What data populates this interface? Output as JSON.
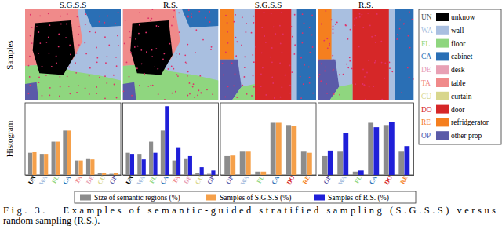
{
  "row_labels": [
    "Samples",
    "Histogram"
  ],
  "classes": [
    {
      "code": "UN",
      "name": "unknow",
      "color": "#000000"
    },
    {
      "code": "WA",
      "name": "wall",
      "color": "#a9bfe0"
    },
    {
      "code": "FL",
      "name": "floor",
      "color": "#8fd67f"
    },
    {
      "code": "CA",
      "name": "cabinet",
      "color": "#2a6fb5"
    },
    {
      "code": "DE",
      "name": "desk",
      "color": "#e8a0b4"
    },
    {
      "code": "TA",
      "name": "table",
      "color": "#f08a8a"
    },
    {
      "code": "CU",
      "name": "curtain",
      "color": "#d8d68c"
    },
    {
      "code": "DO",
      "name": "door",
      "color": "#d62728"
    },
    {
      "code": "RE",
      "name": "refridgerator",
      "color": "#f57f1f"
    },
    {
      "code": "OP",
      "name": "other prop",
      "color": "#5a5aa8"
    }
  ],
  "chart_data": [
    {
      "type": "bar",
      "title": "S.G.S.S",
      "categories": [
        "UN",
        "WA",
        "FL",
        "CA",
        "TA",
        "DE",
        "CU",
        "OP"
      ],
      "series": [
        {
          "color": "#8c8c8c",
          "values": [
            20,
            19,
            30,
            40,
            13,
            15,
            2,
            1
          ]
        },
        {
          "color": "#f5a04a",
          "values": [
            20.5,
            19,
            30,
            40,
            13,
            14,
            1.5,
            2
          ]
        }
      ],
      "ylim": [
        0,
        65
      ],
      "tick_labels": "x"
    },
    {
      "type": "bar",
      "title": "R.S.",
      "categories": [
        "UN",
        "WA",
        "FL",
        "CA",
        "TA",
        "DE",
        "CU",
        "OP"
      ],
      "series": [
        {
          "color": "#8c8c8c",
          "values": [
            20,
            19,
            30,
            40,
            13,
            15,
            2,
            1
          ]
        },
        {
          "color": "#1f1fd8",
          "values": [
            19,
            14,
            20,
            62,
            25,
            17,
            7,
            4
          ]
        }
      ],
      "ylim": [
        0,
        65
      ],
      "tick_labels": "x"
    },
    {
      "type": "bar",
      "title": "S.G.S.S",
      "categories": [
        "OP",
        "WA",
        "FL",
        "CA",
        "DO",
        "RE"
      ],
      "series": [
        {
          "color": "#8c8c8c",
          "values": [
            17,
            21,
            3,
            47,
            45,
            21
          ]
        },
        {
          "color": "#f5a04a",
          "values": [
            17.5,
            21,
            3,
            47,
            44,
            20
          ]
        }
      ],
      "ylim": [
        0,
        65
      ],
      "tick_labels": "x"
    },
    {
      "type": "bar",
      "title": "R.S.",
      "categories": [
        "OP",
        "WA",
        "FL",
        "CA",
        "DO",
        "RE"
      ],
      "series": [
        {
          "color": "#8c8c8c",
          "values": [
            17,
            21,
            3,
            47,
            45,
            21
          ]
        },
        {
          "color": "#1f1fd8",
          "values": [
            22,
            38,
            4,
            43,
            48,
            26
          ]
        }
      ],
      "ylim": [
        0,
        65
      ],
      "tick_labels": "x"
    }
  ],
  "series_legend": [
    {
      "name": "Size of semantic regions (%)",
      "color": "#8c8c8c"
    },
    {
      "name": "Samples of S.G.S.S (%)",
      "color": "#f5a04a"
    },
    {
      "name": "Samples of R.S. (%)",
      "color": "#1f1fd8"
    }
  ],
  "caption": [
    "Fig. 3.   Examples of semantic-guided stratified sampling (S.G.S.S) versus",
    "random sampling (R.S.)."
  ]
}
